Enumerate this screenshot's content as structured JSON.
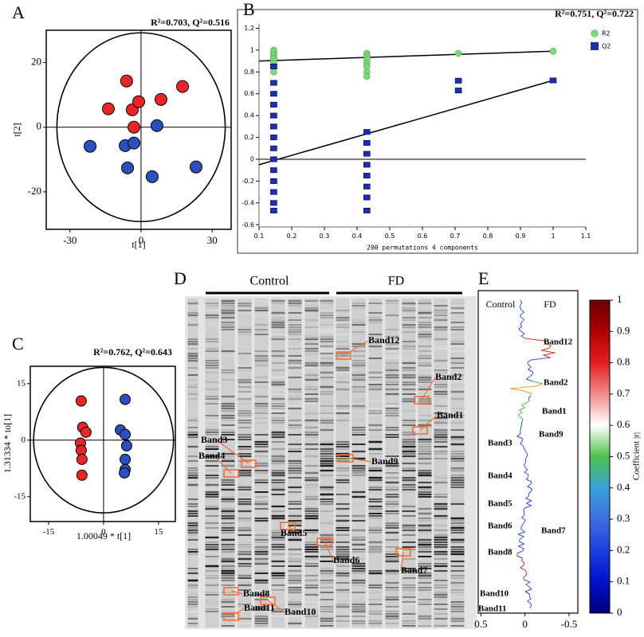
{
  "chart_data": [
    {
      "type": "scatter",
      "panel": "A",
      "title": "R²=0.703, Q²=0.516",
      "xlabel": "t[1]",
      "ylabel": "t[2]",
      "xlim": [
        -40,
        38
      ],
      "ylim": [
        -31.6,
        30
      ],
      "xticks": [
        -30,
        0,
        30
      ],
      "yticks": [
        -20,
        0,
        20
      ],
      "ellipse": {
        "rx": 35.5,
        "ry": 29.2
      },
      "zero_lines": "both",
      "series": [
        {
          "color": "#e8262a",
          "marker": "circle",
          "x": [
            -6.1,
            -13.8,
            -3.7,
            -1.0,
            8.4,
            17.5,
            -3.0
          ],
          "y": [
            14.3,
            5.7,
            5.4,
            7.9,
            8.6,
            12.6,
            0
          ]
        },
        {
          "color": "#2b4fbf",
          "marker": "circle",
          "x": [
            -21.5,
            -6.7,
            -3.0,
            6.7,
            -5.7,
            4.7,
            23.2
          ],
          "y": [
            -5.9,
            -5.7,
            -4.9,
            0.5,
            -12.6,
            -15.3,
            -12.3
          ]
        }
      ]
    },
    {
      "type": "scatter",
      "panel": "B",
      "title": "R²=0.751, Q²=0.722",
      "xlabel": "200 permutations 4 components",
      "xlim": [
        0.1,
        1.1
      ],
      "ylim": [
        -0.62,
        1.24
      ],
      "xticks": [
        0.1,
        0.2,
        0.3,
        0.4,
        0.5,
        0.6,
        0.7,
        0.8,
        0.9,
        1,
        1.1
      ],
      "yticks": [
        1.2,
        1,
        0.8,
        0.6,
        0.4,
        0.2,
        0,
        -0.2,
        -0.4,
        -0.6
      ],
      "zero_lines": "horizontal",
      "legend": "top-right",
      "series": [
        {
          "name": "R2",
          "color": "#7dd87d",
          "marker": "circle",
          "x": [
            0.145,
            0.145,
            0.145,
            0.145,
            0.145,
            0.145,
            0.145,
            0.145,
            0.145,
            0.145,
            0.43,
            0.43,
            0.43,
            0.43,
            0.43,
            0.43,
            0.43,
            0.43,
            0.71,
            1.0
          ],
          "y": [
            1.0,
            0.98,
            0.96,
            0.95,
            0.93,
            0.92,
            0.9,
            0.88,
            0.85,
            0.8,
            0.97,
            0.95,
            0.93,
            0.91,
            0.88,
            0.85,
            0.8,
            0.76,
            0.97,
            0.99
          ]
        },
        {
          "name": "Q2",
          "color": "#1f2fa8",
          "marker": "square",
          "x": [
            0.145,
            0.145,
            0.145,
            0.145,
            0.145,
            0.145,
            0.145,
            0.145,
            0.145,
            0.145,
            0.145,
            0.145,
            0.145,
            0.145,
            0.43,
            0.43,
            0.43,
            0.43,
            0.43,
            0.43,
            0.43,
            0.43,
            0.71,
            0.71,
            1.0
          ],
          "y": [
            0.85,
            0.7,
            0.6,
            0.5,
            0.4,
            0.3,
            0.2,
            0.1,
            0,
            -0.1,
            -0.2,
            -0.3,
            -0.4,
            -0.47,
            0.25,
            0.15,
            0.05,
            -0.05,
            -0.15,
            -0.25,
            -0.35,
            -0.47,
            0.72,
            0.63,
            0.722
          ]
        }
      ],
      "trend_lines": [
        {
          "x": [
            0.1,
            1.0
          ],
          "y": [
            0.9,
            0.99
          ]
        },
        {
          "x": [
            0.1,
            1.0
          ],
          "y": [
            -0.05,
            0.722
          ]
        }
      ]
    },
    {
      "type": "scatter",
      "panel": "C",
      "title": "R²=0.762, Q²=0.643",
      "xlabel": "1.00049 * t[1]",
      "ylabel": "1.31334 * to[1]",
      "xlim": [
        -20,
        19.6
      ],
      "ylim": [
        -21.6,
        19.6
      ],
      "xticks": [
        -15,
        0,
        15
      ],
      "yticks": [
        15,
        0,
        -15
      ],
      "ellipse": {
        "rx": 19.1,
        "ry": 19.3
      },
      "zero_lines": "both",
      "series": [
        {
          "color": "#e8262a",
          "marker": "circle",
          "x": [
            -6.1,
            -5.7,
            -4.8,
            -6.3,
            -6.1,
            -5.9,
            -5.9
          ],
          "y": [
            10.4,
            3.4,
            2.1,
            -0.8,
            -2.7,
            -5.1,
            -9.3
          ]
        },
        {
          "color": "#2b4fbf",
          "marker": "circle",
          "x": [
            5.9,
            4.6,
            5.9,
            6.3,
            5.9,
            5.9,
            5.7
          ],
          "y": [
            10.8,
            2.7,
            1.5,
            -1.5,
            -5.1,
            -7.8,
            -8.7
          ]
        }
      ]
    },
    {
      "type": "line",
      "panel": "E",
      "groups": [
        "Control",
        "FD"
      ],
      "xlim": [
        0.53,
        -0.6
      ],
      "xticks": [
        0.5,
        0,
        -0.5
      ],
      "bands": [
        "Band12",
        "Band2",
        "Band1",
        "Band9",
        "Band3",
        "Band4",
        "Band5",
        "Band6",
        "Band7",
        "Band8",
        "Band11",
        "Band10"
      ],
      "colorbar": {
        "label": "Coefficient |r|",
        "lim": [
          0,
          1
        ],
        "ticks": [
          0,
          0.1,
          0.2,
          0.3,
          0.4,
          0.5,
          0.6,
          0.7,
          0.8,
          0.9,
          1
        ],
        "colors": [
          "#00007a",
          "#0010c8",
          "#1c3fe0",
          "#3d6fe0",
          "#3aa0d8",
          "#4cc24c",
          "#ffffff",
          "#f28a8a",
          "#e41e1e",
          "#b00000",
          "#6a0000"
        ]
      }
    }
  ],
  "gel": {
    "panel": "D",
    "groups": [
      "Control",
      "FD"
    ],
    "bands": [
      "Band12",
      "Band2",
      "Band1",
      "Band9",
      "Band3",
      "Band4",
      "Band5",
      "Band6",
      "Band7",
      "Band8",
      "Band11",
      "Band10"
    ]
  }
}
